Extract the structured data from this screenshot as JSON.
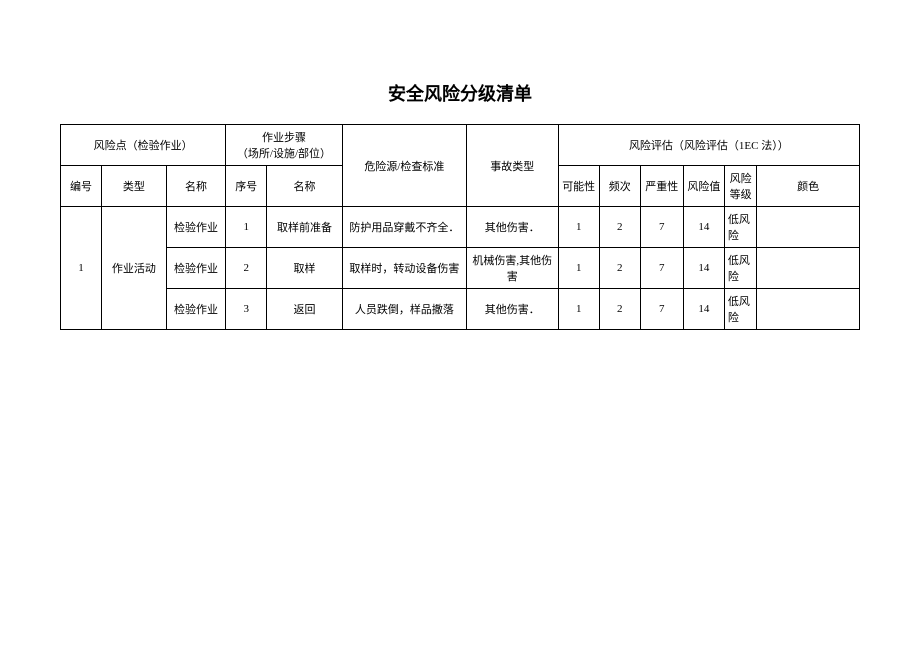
{
  "title": "安全风险分级清单",
  "headers": {
    "risk_point_group": "风险点（检验作业）",
    "work_step_group": "作业步骤\n（场所/设施/部位）",
    "hazard_source": "危险源/检查标准",
    "accident_type": "事故类型",
    "risk_assessment_group": "风险评估（风险评估（1EC 法））",
    "number": "编号",
    "type": "类型",
    "name": "名称",
    "seq": "序号",
    "step_name": "名称",
    "possibility": "可能性",
    "frequency": "频次",
    "severity": "严重性",
    "risk_value": "风险值",
    "risk_level": "风险\n等级",
    "color": "颜色"
  },
  "rows": [
    {
      "number": "1",
      "type": "作业活动",
      "name": "检验作业",
      "seq": "1",
      "step_name": "取样前准备",
      "hazard": "防护用品穿戴不齐全．",
      "accident": "其他伤害．",
      "possibility": "1",
      "frequency": "2",
      "severity": "7",
      "risk_value": "14",
      "risk_level": "低风险",
      "color": ""
    },
    {
      "name": "检验作业",
      "seq": "2",
      "step_name": "取样",
      "hazard": "取样时，转动设备伤害",
      "accident": "机械伤害,其他伤害",
      "possibility": "1",
      "frequency": "2",
      "severity": "7",
      "risk_value": "14",
      "risk_level": "低风险",
      "color": ""
    },
    {
      "name": "检验作业",
      "seq": "3",
      "step_name": "返回",
      "hazard": "人员跌倒，样品撒落",
      "accident": "其他伤害．",
      "possibility": "1",
      "frequency": "2",
      "severity": "7",
      "risk_value": "14",
      "risk_level": "低风险",
      "color": ""
    }
  ],
  "col_widths": {
    "number": "38",
    "type": "60",
    "name": "55",
    "seq": "38",
    "step_name": "70",
    "hazard": "115",
    "accident": "85",
    "possibility": "38",
    "frequency": "38",
    "severity": "40",
    "risk_value": "38",
    "risk_level": "30",
    "color": "95"
  }
}
